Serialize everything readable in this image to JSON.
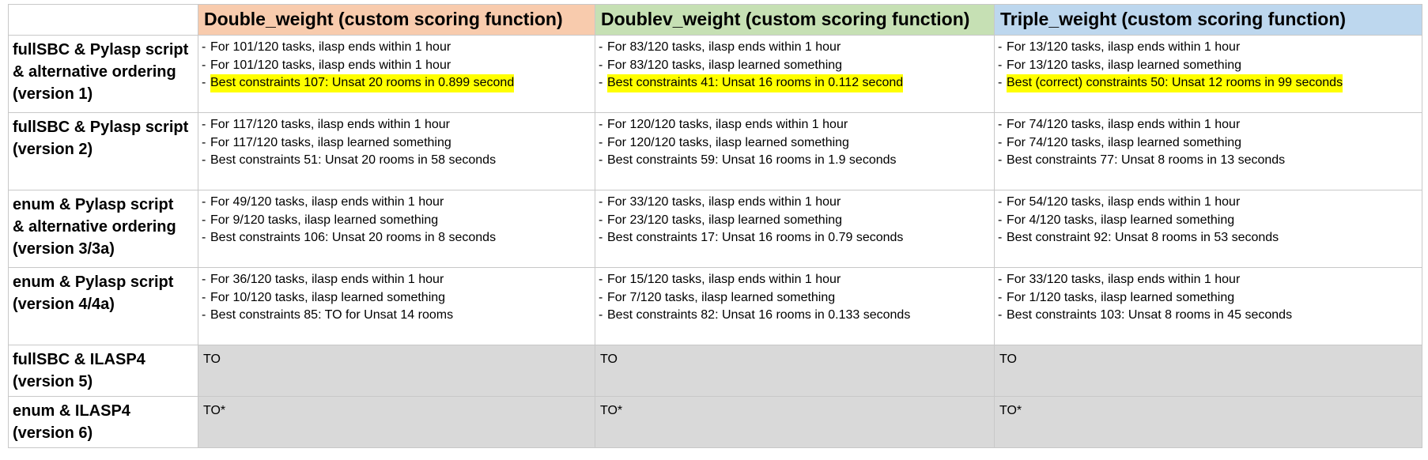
{
  "colors": {
    "header_double": "#f8cbad",
    "header_doublev": "#c6e0b4",
    "header_triple": "#bdd7ee",
    "highlight": "#ffff00",
    "timeout_cell": "#d9d9d9"
  },
  "columns": [
    "Double_weight (custom scoring function)",
    "Doublev_weight (custom scoring function)",
    "Triple_weight (custom scoring function)"
  ],
  "rows": [
    {
      "label": [
        "fullSBC & Pylasp script",
        "& alternative ordering",
        "(version 1)"
      ],
      "cells": [
        {
          "bullet": "-",
          "lines": [
            "For 101/120 tasks, ilasp ends within 1 hour",
            "For 101/120 tasks, ilasp ends within 1 hour",
            "Best constraints 107: Unsat 20 rooms in 0.899 second"
          ]
        },
        {
          "bullet": "-",
          "lines": [
            "For 83/120 tasks, ilasp ends within 1 hour",
            "For 83/120 tasks, ilasp learned something",
            "Best constraints 41: Unsat 16 rooms in 0.112 second"
          ]
        },
        {
          "bullet": "-",
          "lines": [
            "For 13/120 tasks, ilasp ends within 1 hour",
            "For 13/120 tasks, ilasp learned something",
            "Best (correct) constraints 50: Unsat 12 rooms in 99 seconds"
          ]
        }
      ]
    },
    {
      "label": [
        "fullSBC & Pylasp script",
        "(version 2)"
      ],
      "cells": [
        {
          "bullet": "-",
          "lines": [
            "For 117/120 tasks, ilasp ends within 1 hour",
            "For 117/120 tasks, ilasp learned something",
            "Best constraints 51: Unsat 20 rooms in 58 seconds"
          ]
        },
        {
          "bullet": "-",
          "lines": [
            "For 120/120 tasks, ilasp ends within 1 hour",
            "For 120/120 tasks, ilasp learned something",
            "Best constraints 59: Unsat 16 rooms in 1.9 seconds"
          ]
        },
        {
          "bullet": "-",
          "lines": [
            "For 74/120 tasks, ilasp ends within 1 hour",
            "For 74/120 tasks, ilasp learned something",
            "Best constraints 77: Unsat 8 rooms in 13 seconds"
          ]
        }
      ]
    },
    {
      "label": [
        "enum & Pylasp script",
        "& alternative ordering",
        "(version 3/3a)"
      ],
      "cells": [
        {
          "bullet": "-",
          "lines": [
            "For 49/120 tasks, ilasp ends within 1 hour",
            "For 9/120 tasks, ilasp learned something",
            "Best constraints 106: Unsat 20 rooms in 8 seconds"
          ]
        },
        {
          "bullet": "-",
          "lines": [
            "For 33/120 tasks, ilasp ends within 1 hour",
            "For 23/120 tasks, ilasp learned something",
            "Best constraints 17: Unsat 16 rooms in 0.79 seconds"
          ]
        },
        {
          "bullet": "-",
          "lines": [
            "For 54/120 tasks, ilasp ends within 1 hour",
            "For 4/120 tasks, ilasp learned something",
            "Best constraint 92: Unsat 8 rooms in 53 seconds"
          ]
        }
      ]
    },
    {
      "label": [
        "enum & Pylasp script",
        "(version 4/4a)"
      ],
      "cells": [
        {
          "bullet": "-",
          "lines": [
            "For 36/120 tasks, ilasp ends within 1 hour",
            "For 10/120 tasks, ilasp learned something",
            "Best constraints 85: TO for Unsat 14 rooms"
          ]
        },
        {
          "bullet": "-",
          "lines": [
            "For 15/120 tasks, ilasp ends within 1 hour",
            "For 7/120 tasks, ilasp learned something",
            "Best constraints 82: Unsat 16 rooms in 0.133 seconds"
          ]
        },
        {
          "bullet": "-",
          "lines": [
            "For 33/120 tasks, ilasp ends within 1 hour",
            "For 1/120 tasks, ilasp learned something",
            "Best constraints 103: Unsat 8 rooms in 45 seconds"
          ]
        }
      ]
    },
    {
      "label": [
        "fullSBC & ILASP4",
        "(version 5)"
      ],
      "cells": [
        {
          "text": "TO"
        },
        {
          "text": "TO"
        },
        {
          "text": "TO"
        }
      ]
    },
    {
      "label": [
        "enum & ILASP4",
        "(version 6)"
      ],
      "cells": [
        {
          "text": "TO*"
        },
        {
          "text": "TO*"
        },
        {
          "text": "TO*"
        }
      ]
    }
  ]
}
